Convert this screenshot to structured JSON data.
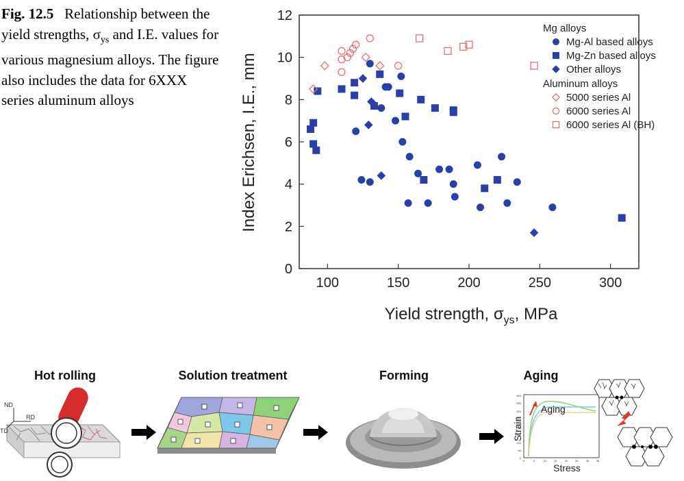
{
  "caption": {
    "fig_label": "Fig. 12.5",
    "text": "Relationship between the yield strengths, σys and I.E. values for various magnesium alloys. The figure also includes the data for 6XXX series aluminum alloys",
    "sigma": "σ",
    "sub": "ys",
    "pre": "Relationship between the yield strengths,",
    "post": "and I.E. values for various magnesium alloys. The figure also includes the data for 6XXX series aluminum alloys"
  },
  "chart_data": {
    "type": "scatter",
    "ylabel": "Index Erichsen, I.E., mm",
    "xlabel_main": "Yield strength, σ",
    "xlabel_sub": "ys",
    "xlabel_tail": ", MPa",
    "xlim": [
      80,
      320
    ],
    "ylim": [
      0,
      12
    ],
    "xticks": [
      100,
      150,
      200,
      250,
      300
    ],
    "yticks": [
      0,
      2,
      4,
      6,
      8,
      10,
      12
    ],
    "legend_position": "top-right",
    "legend_groups": [
      {
        "title": "Mg alloys",
        "series_indices": [
          0,
          1,
          2
        ]
      },
      {
        "title": "Aluminum alloys",
        "series_indices": [
          3,
          4,
          5
        ]
      }
    ],
    "series": [
      {
        "name": "Mg-Al based alloys",
        "marker": "circle",
        "filled": true,
        "color": "#2b3fa8",
        "points": [
          [
            120,
            6.5
          ],
          [
            124,
            4.2
          ],
          [
            130,
            4.1
          ],
          [
            130,
            9.7
          ],
          [
            138,
            7.6
          ],
          [
            141,
            8.6
          ],
          [
            143,
            8.6
          ],
          [
            148,
            7.0
          ],
          [
            152,
            9.1
          ],
          [
            153,
            6.0
          ],
          [
            157,
            3.1
          ],
          [
            158,
            5.3
          ],
          [
            164,
            4.5
          ],
          [
            171,
            3.1
          ],
          [
            179,
            4.7
          ],
          [
            186,
            4.7
          ],
          [
            189,
            4.0
          ],
          [
            190,
            3.4
          ],
          [
            206,
            4.9
          ],
          [
            208,
            2.9
          ],
          [
            223,
            5.3
          ],
          [
            227,
            3.1
          ],
          [
            234,
            4.1
          ],
          [
            259,
            2.9
          ]
        ]
      },
      {
        "name": "Mg-Zn based alloys",
        "marker": "square",
        "filled": true,
        "color": "#2b3fa8",
        "points": [
          [
            88,
            6.6
          ],
          [
            90,
            6.9
          ],
          [
            90,
            5.9
          ],
          [
            92,
            5.6
          ],
          [
            93,
            8.4
          ],
          [
            110,
            8.5
          ],
          [
            119,
            8.8
          ],
          [
            119,
            8.2
          ],
          [
            133,
            7.7
          ],
          [
            137,
            9.2
          ],
          [
            151,
            8.3
          ],
          [
            155,
            7.2
          ],
          [
            166,
            8.0
          ],
          [
            168,
            4.2
          ],
          [
            176,
            7.6
          ],
          [
            189,
            7.5
          ],
          [
            189,
            7.4
          ],
          [
            211,
            3.8
          ],
          [
            220,
            4.2
          ],
          [
            308,
            2.4
          ]
        ]
      },
      {
        "name": "Other alloys",
        "marker": "diamond",
        "filled": true,
        "color": "#2b3fa8",
        "points": [
          [
            125,
            9.0
          ],
          [
            129,
            6.8
          ],
          [
            131,
            7.9
          ],
          [
            138,
            4.4
          ],
          [
            246,
            1.7
          ]
        ]
      },
      {
        "name": "5000 series Al",
        "marker": "diamond",
        "filled": false,
        "color": "#e07070",
        "points": [
          [
            90,
            8.5
          ],
          [
            98,
            9.6
          ],
          [
            127,
            10.0
          ],
          [
            137,
            9.6
          ]
        ]
      },
      {
        "name": "6000 series Al",
        "marker": "circle",
        "filled": false,
        "color": "#e07070",
        "points": [
          [
            110,
            9.3
          ],
          [
            110,
            9.9
          ],
          [
            110,
            10.3
          ],
          [
            114,
            10.0
          ],
          [
            116,
            10.2
          ],
          [
            118,
            10.4
          ],
          [
            120,
            10.6
          ],
          [
            130,
            10.9
          ],
          [
            150,
            9.6
          ]
        ]
      },
      {
        "name": "6000 series Al (BH)",
        "marker": "square",
        "filled": false,
        "color": "#e07070",
        "points": [
          [
            165,
            10.9
          ],
          [
            185,
            10.3
          ],
          [
            196,
            10.5
          ],
          [
            200,
            10.6
          ],
          [
            246,
            9.6
          ]
        ]
      }
    ]
  },
  "process": {
    "steps": [
      {
        "title": "Hot rolling"
      },
      {
        "title": "Solution treatment"
      },
      {
        "title": "Forming"
      },
      {
        "title": "Aging"
      }
    ],
    "rolling_labels": {
      "nd": "ND",
      "rd": "RD",
      "td": "TD"
    },
    "aging_plot": {
      "ylabel": "Strain",
      "xlabel": "Stress",
      "annotation": "Aging",
      "yticks": [
        "400",
        "350",
        "300",
        "250",
        "200",
        "150",
        "100",
        "50",
        "0"
      ],
      "xticks": [
        "0",
        "5",
        "10",
        "15",
        "20",
        "25",
        "30",
        "35"
      ]
    },
    "colors": {
      "red": "#d93a2b",
      "blue": "#2b3fa8",
      "arrow": "#000000"
    }
  }
}
